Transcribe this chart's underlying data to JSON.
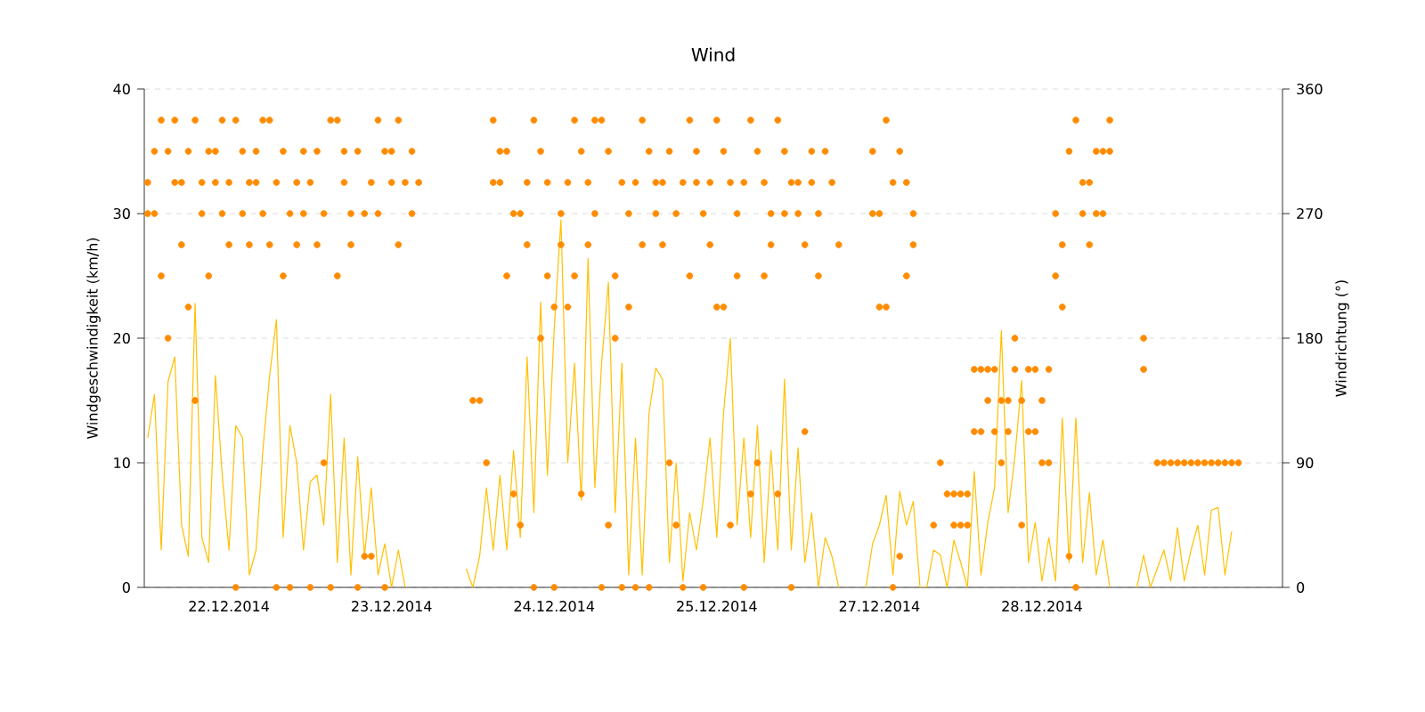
{
  "chart_data": {
    "type": "line",
    "title": "Wind",
    "ylabel": "Windgeschwindigkeit (km/h)",
    "y2label": "Windrichtung (°)",
    "categories": [
      null,
      null,
      null,
      null,
      null,
      null,
      null,
      null,
      null,
      null,
      null,
      null,
      "22.12.2014",
      null,
      null,
      null,
      null,
      null,
      null,
      null,
      null,
      null,
      null,
      null,
      null,
      null,
      null,
      null,
      null,
      null,
      null,
      null,
      null,
      null,
      null,
      null,
      "23.12.2014",
      null,
      null,
      null,
      null,
      null,
      null,
      null,
      null,
      null,
      null,
      null,
      null,
      null,
      null,
      null,
      null,
      null,
      null,
      null,
      null,
      null,
      null,
      null,
      "24.12.2014",
      null,
      null,
      null,
      null,
      null,
      null,
      null,
      null,
      null,
      null,
      null,
      null,
      null,
      null,
      null,
      null,
      null,
      null,
      null,
      null,
      null,
      null,
      null,
      "25.12.2014",
      null,
      null,
      null,
      null,
      null,
      null,
      null,
      null,
      null,
      null,
      null,
      null,
      null,
      null,
      null,
      null,
      null,
      null,
      null,
      null,
      null,
      null,
      null,
      "27.12.2014",
      null,
      null,
      null,
      null,
      null,
      null,
      null,
      null,
      null,
      null,
      null,
      null,
      null,
      null,
      null,
      null,
      null,
      null,
      null,
      null,
      null,
      null,
      null,
      "28.12.2014",
      null,
      null,
      null,
      null,
      null,
      null,
      null,
      null,
      null,
      null,
      null,
      null,
      null,
      null,
      null,
      null,
      null,
      null,
      null,
      null,
      null,
      null,
      null,
      null,
      null,
      null,
      null,
      null,
      null,
      null,
      null,
      null,
      null,
      null,
      null
    ],
    "ylim": [
      0,
      40
    ],
    "y2lim": [
      0,
      360
    ],
    "yticks": [
      0,
      10,
      20,
      30,
      40
    ],
    "y2ticks": [
      0,
      90,
      180,
      270,
      360
    ],
    "grid": "y",
    "series": [
      {
        "color": "#ffc000",
        "marker": "none",
        "values": [
          12,
          15.5,
          3,
          16.5,
          18.5,
          5,
          2.5,
          22.8,
          4,
          2,
          17,
          9,
          3,
          13,
          12,
          1,
          3,
          11,
          17,
          21.5,
          4,
          13,
          10,
          3,
          8.5,
          9,
          5,
          15.5,
          2,
          12,
          1,
          10.5,
          2.5,
          8,
          1,
          3.5,
          0,
          3,
          0,
          null,
          null,
          null,
          null,
          null,
          null,
          null,
          null,
          1.5,
          0,
          2.5,
          8,
          3,
          9,
          3,
          11,
          4,
          18.5,
          6,
          22.9,
          9,
          20.7,
          29.5,
          10,
          18,
          7,
          26.4,
          8,
          18,
          24.5,
          6,
          18,
          1,
          12,
          1,
          14,
          17.6,
          16.7,
          2,
          10,
          0.5,
          6,
          3,
          7,
          12,
          4,
          14,
          20,
          5,
          12,
          4,
          13,
          2,
          11,
          3,
          16.7,
          3,
          11.2,
          2,
          6,
          0,
          4,
          2.5,
          0,
          null,
          null,
          null,
          0,
          3.5,
          5,
          7.4,
          1,
          7.7,
          5,
          6.9,
          0,
          0,
          3,
          2.6,
          0,
          3.8,
          2,
          0,
          9.3,
          1,
          5.2,
          8,
          20.6,
          6,
          10.5,
          16.6,
          2,
          5.2,
          0.5,
          4,
          0.5,
          13.6,
          2,
          13.6,
          2,
          7.6,
          1,
          3.8,
          0,
          null,
          null,
          null,
          0,
          2.6,
          0,
          1.5,
          3,
          0.5,
          4.8,
          0.5,
          3,
          5,
          1,
          6.2,
          6.4,
          1,
          4.5,
          null,
          null,
          null,
          null,
          null,
          null,
          null
        ]
      },
      {
        "type": "scatter",
        "axis": "y2",
        "color": "#ff8c00",
        "marker": "circle",
        "values": [
          292.5,
          270,
          337.5,
          315,
          292.5,
          247.5,
          202.5,
          337.5,
          292.5,
          225,
          315,
          270,
          292.5,
          337.5,
          315,
          247.5,
          292.5,
          270,
          337.5,
          292.5,
          315,
          270,
          292.5,
          315,
          292.5,
          315,
          270,
          0,
          337.5,
          292.5,
          270,
          315,
          22.5,
          292.5,
          337.5,
          0,
          315,
          247.5,
          292.5,
          270,
          292.5,
          null,
          null,
          null,
          null,
          null,
          null,
          null,
          135,
          135,
          90,
          337.5,
          292.5,
          315,
          67.5,
          270,
          292.5,
          337.5,
          315,
          292.5,
          202.5,
          270,
          292.5,
          337.5,
          315,
          292.5,
          270,
          337.5,
          315,
          225,
          292.5,
          270,
          292.5,
          337.5,
          315,
          270,
          292.5,
          315,
          270,
          292.5,
          337.5,
          315,
          270,
          292.5,
          337.5,
          315,
          292.5,
          270,
          292.5,
          337.5,
          315,
          292.5,
          270,
          337.5,
          315,
          292.5,
          292.5,
          112.5,
          315,
          270,
          315,
          292.5,
          247.5,
          null,
          null,
          null,
          null,
          315,
          270,
          337.5,
          292.5,
          315,
          225,
          247.5,
          null,
          null,
          45,
          90,
          67.5,
          67.5,
          45,
          67.5,
          157.5,
          112.5,
          135,
          157.5,
          135,
          112.5,
          157.5,
          135,
          112.5,
          157.5,
          135,
          90,
          225,
          247.5,
          315,
          337.5,
          270,
          292.5,
          315,
          270,
          337.5,
          null,
          null,
          null,
          null,
          180,
          null,
          90,
          90,
          90,
          90,
          90,
          90,
          90,
          90,
          90,
          90,
          90,
          90,
          90,
          null,
          null,
          null,
          null,
          null,
          null
        ]
      },
      {
        "type": "scatter",
        "axis": "y2",
        "color": "#ff8c00",
        "marker": "circle",
        "values": [
          270,
          315,
          225,
          180,
          337.5,
          292.5,
          315,
          135,
          270,
          315,
          292.5,
          337.5,
          247.5,
          0,
          270,
          292.5,
          315,
          337.5,
          247.5,
          0,
          225,
          0,
          247.5,
          270,
          0,
          247.5,
          90,
          337.5,
          225,
          315,
          247.5,
          0,
          270,
          22.5,
          270,
          315,
          292.5,
          337.5,
          null,
          315,
          null,
          null,
          null,
          null,
          null,
          null,
          null,
          null,
          null,
          null,
          null,
          292.5,
          315,
          225,
          270,
          45,
          247.5,
          0,
          180,
          225,
          0,
          247.5,
          202.5,
          225,
          67.5,
          247.5,
          337.5,
          0,
          45,
          180,
          0,
          202.5,
          0,
          247.5,
          0,
          292.5,
          247.5,
          90,
          45,
          0,
          225,
          292.5,
          0,
          247.5,
          202.5,
          202.5,
          45,
          225,
          0,
          67.5,
          90,
          225,
          247.5,
          67.5,
          270,
          0,
          270,
          247.5,
          292.5,
          225,
          null,
          null,
          null,
          null,
          null,
          null,
          null,
          270,
          202.5,
          202.5,
          0,
          22.5,
          292.5,
          270,
          null,
          null,
          null,
          null,
          null,
          45,
          67.5,
          45,
          112.5,
          157.5,
          157.5,
          112.5,
          90,
          135,
          180,
          45,
          157.5,
          112.5,
          90,
          157.5,
          270,
          202.5,
          22.5,
          0,
          292.5,
          247.5,
          270,
          315,
          315,
          null,
          null,
          null,
          null,
          157.5,
          null,
          null,
          null,
          null,
          null,
          null,
          null,
          null,
          null,
          null,
          null,
          null,
          null,
          null,
          null,
          null,
          null,
          null,
          null,
          null
        ]
      }
    ]
  }
}
